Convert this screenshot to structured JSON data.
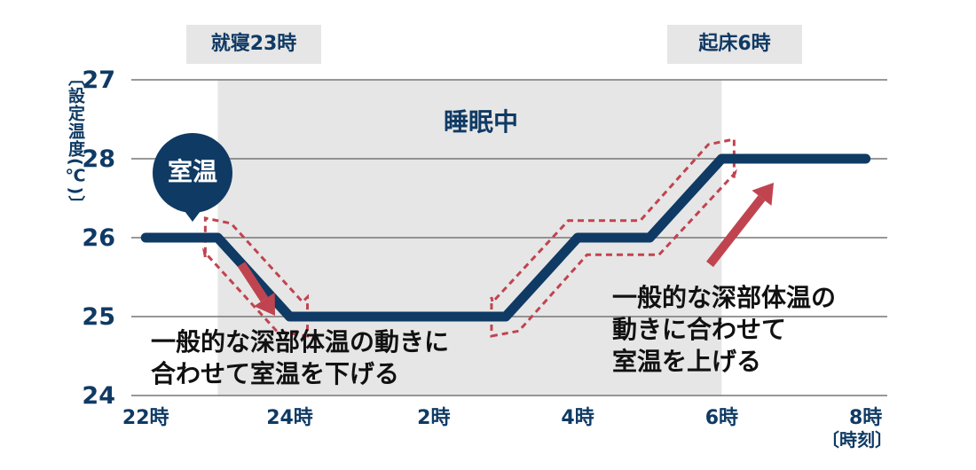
{
  "chart_data": {
    "type": "line",
    "ylabel": "〔設定温度(℃)〕",
    "xunit_label": "〔時刻〕",
    "x_ticks": [
      {
        "value": 22,
        "label": "22時"
      },
      {
        "value": 24,
        "label": "24時"
      },
      {
        "value": 26,
        "label": "2時"
      },
      {
        "value": 28,
        "label": "4時"
      },
      {
        "value": 30,
        "label": "6時"
      },
      {
        "value": 32,
        "label": "8時"
      }
    ],
    "y_ticks": [
      {
        "value": 0,
        "label": "24"
      },
      {
        "value": 1,
        "label": "25"
      },
      {
        "value": 2,
        "label": "26"
      },
      {
        "value": 3,
        "label": "28"
      },
      {
        "value": 4,
        "label": "27"
      }
    ],
    "xlim": [
      21.8,
      32.3
    ],
    "ylim": [
      0,
      4
    ],
    "series": [
      {
        "x": [
          22,
          23,
          24,
          26,
          27,
          28,
          29,
          30,
          32
        ],
        "y": [
          26,
          26,
          25,
          25,
          25,
          26,
          26,
          28,
          28
        ],
        "y_axis_level": [
          2,
          2,
          1,
          1,
          1,
          2,
          2,
          3,
          3
        ]
      }
    ],
    "sleep_period": {
      "start": 23,
      "end": 30,
      "label": "睡眠中"
    },
    "annotations": {
      "bedtime": "就寝23時",
      "wakeup": "起床6時",
      "room_temp": "室温",
      "down_note": [
        "一般的な深部体温の動きに",
        "合わせて室温を下げる"
      ],
      "up_note": [
        "一般的な深部体温の",
        "動きに合わせて",
        "室温を上げる"
      ]
    },
    "colors": {
      "line": "#0f3a64",
      "arrow": "#c0444f",
      "dashed_box": "#c0444f",
      "sleep_band": "#e6e6e6",
      "grid": "#777777"
    },
    "grid": true
  }
}
